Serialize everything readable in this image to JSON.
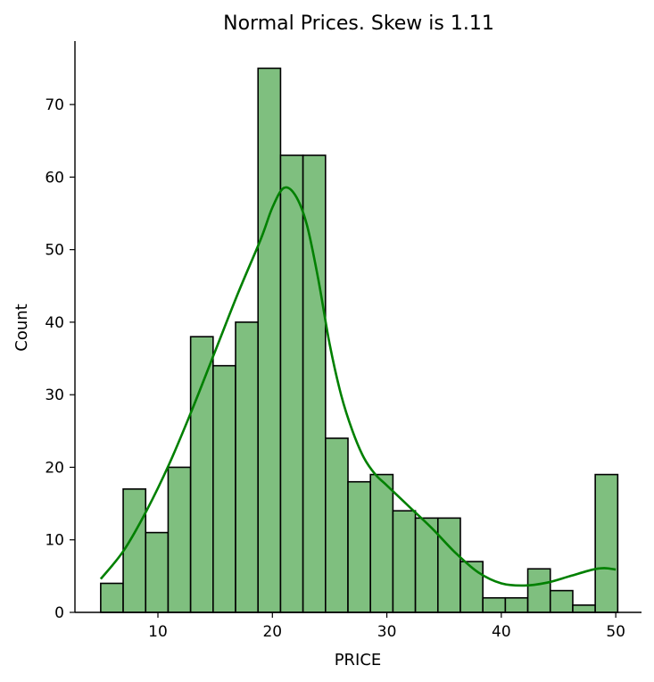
{
  "chart_data": {
    "type": "bar",
    "title": "Normal Prices. Skew is 1.11",
    "xlabel": "PRICE",
    "ylabel": "Count",
    "xlim": [
      2.75,
      52.25
    ],
    "ylim": [
      0,
      78.75
    ],
    "xticks": [
      10,
      20,
      30,
      40,
      50
    ],
    "yticks": [
      0,
      10,
      20,
      30,
      40,
      50,
      60,
      70
    ],
    "bin_start": 5,
    "bin_width": 1.964,
    "counts": [
      4,
      17,
      11,
      20,
      38,
      34,
      40,
      75,
      63,
      63,
      24,
      18,
      19,
      14,
      13,
      13,
      7,
      2,
      2,
      6,
      3,
      1,
      19
    ],
    "kde": {
      "x": [
        5,
        7,
        9,
        11,
        13,
        15,
        17,
        19,
        20,
        21,
        22,
        23,
        24,
        25,
        26,
        27,
        28,
        29,
        30,
        32,
        34,
        36,
        38,
        40,
        42,
        44,
        46,
        48,
        49,
        50
      ],
      "y": [
        4.6,
        8.5,
        14,
        20.5,
        28,
        36,
        44,
        51.5,
        55.8,
        58.5,
        57.5,
        53.5,
        46,
        37,
        30,
        25,
        21.3,
        19,
        17.5,
        14.5,
        11.5,
        8.2,
        5.5,
        4,
        3.7,
        4.1,
        5,
        5.9,
        6.1,
        5.9
      ]
    },
    "colors": {
      "bar": "#7fbf7f",
      "kde": "#008000",
      "edge": "#000000"
    },
    "grid": false
  }
}
